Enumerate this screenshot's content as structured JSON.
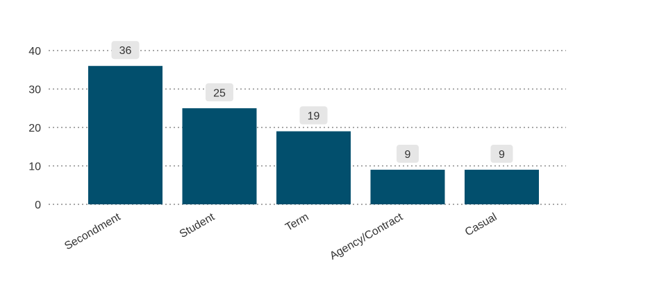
{
  "chart_data": {
    "type": "bar",
    "title": "",
    "xlabel": "",
    "ylabel": "",
    "categories": [
      "Secondment",
      "Student",
      "Term",
      "Agency/Contract",
      "Casual"
    ],
    "values": [
      36,
      25,
      19,
      9,
      9
    ],
    "data_labels": [
      "36",
      "25",
      "19",
      "9",
      "9"
    ],
    "y_ticks": [
      0,
      10,
      20,
      30,
      40
    ],
    "y_tick_labels": [
      "0",
      "10",
      "20",
      "30",
      "40"
    ],
    "ylim": [
      0,
      40
    ],
    "grid": true,
    "legend": "none",
    "colors": {
      "bar": "#024f6d",
      "label_bg": "#e6e6e6",
      "text": "#333333",
      "grid": "#8a8a8a"
    }
  }
}
